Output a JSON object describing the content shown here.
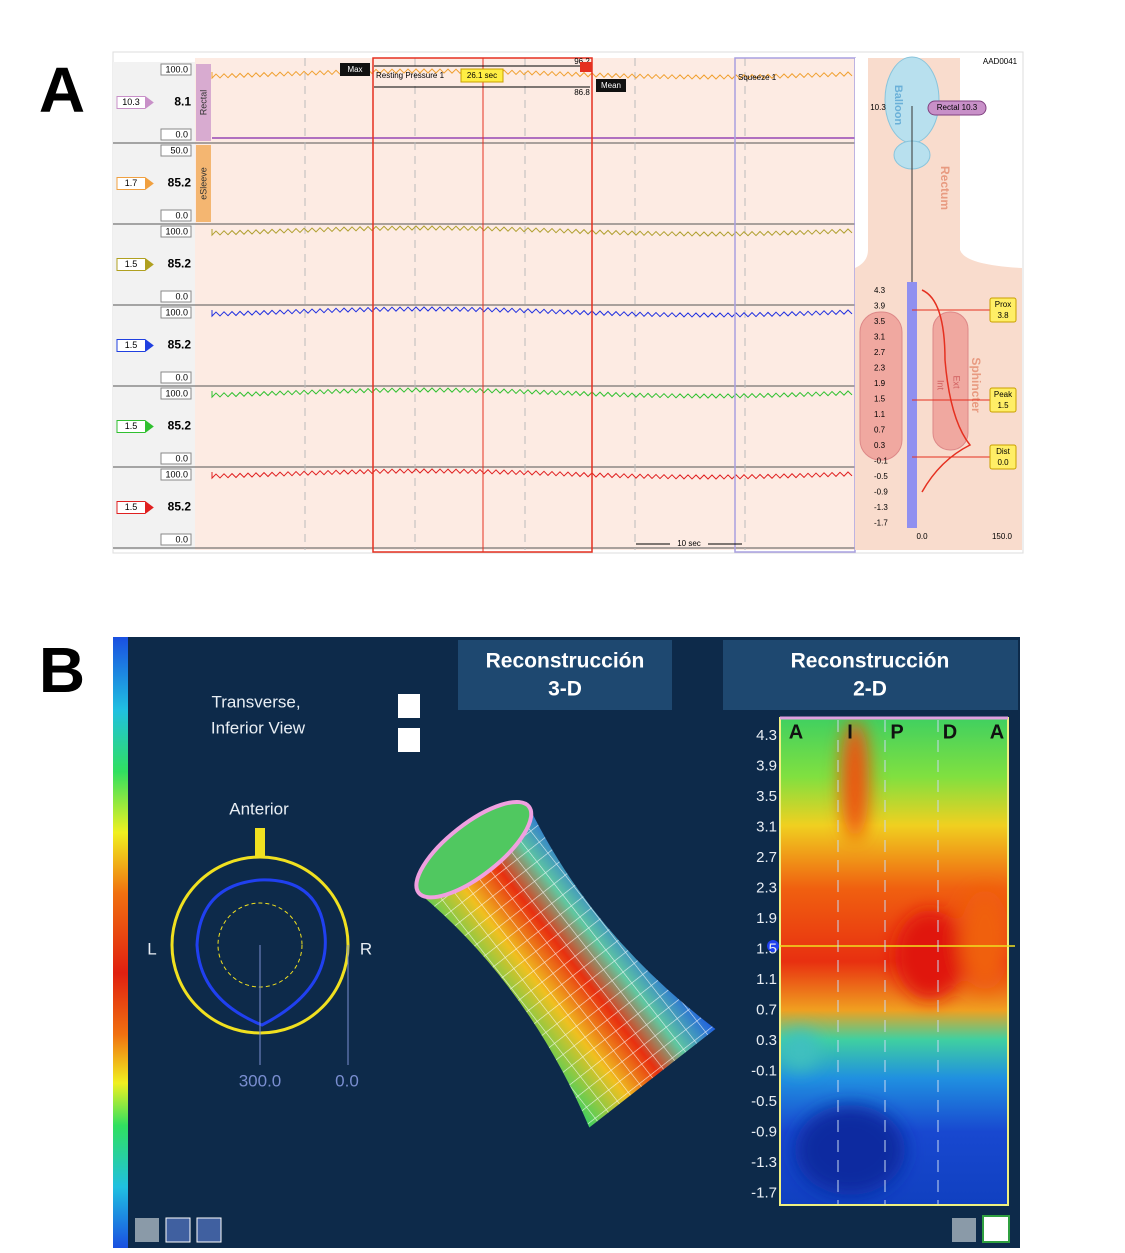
{
  "panel_a": {
    "label": "A",
    "channels": [
      {
        "max": "100.0",
        "min": "0.0",
        "tag": "10.3",
        "reading": "8.1",
        "name": "Rectal"
      },
      {
        "max": "50.0",
        "min": "0.0",
        "tag": "1.7",
        "reading": "85.2",
        "name": "eSleeve"
      },
      {
        "max": "100.0",
        "min": "0.0",
        "tag": "1.5",
        "reading": "85.2"
      },
      {
        "max": "100.0",
        "min": "0.0",
        "tag": "1.5",
        "reading": "85.2"
      },
      {
        "max": "100.0",
        "min": "0.0",
        "tag": "1.5",
        "reading": "85.2"
      },
      {
        "max": "100.0",
        "min": "0.0",
        "tag": "1.5",
        "reading": "85.2"
      }
    ],
    "annotations": {
      "max": "Max",
      "resting": "Resting Pressure 1",
      "duration": "26.1 sec",
      "peak_value": "96.2",
      "mean_value": "86.8",
      "mean": "Mean",
      "squeeze": "Squeeze 1",
      "scale": "10 sec"
    },
    "anatomy": {
      "id": "AAD0041",
      "balloon": "Balloon",
      "rectum": "Rectum",
      "balloon_value": "10.3",
      "rectal_tag": "Rectal 10.3",
      "sphincter": "Sphincter",
      "int": "Int",
      "ext": "Ext",
      "prox": "Prox",
      "prox_value": "3.8",
      "peak": "Peak",
      "peak_value": "1.5",
      "dist": "Dist",
      "dist_value": "0.0",
      "scale": [
        "4.3",
        "3.9",
        "3.5",
        "3.1",
        "2.7",
        "2.3",
        "1.9",
        "1.5",
        "1.1",
        "0.7",
        "0.3",
        "-0.1",
        "-0.5",
        "-0.9",
        "-1.3",
        "-1.7"
      ],
      "x_min": "0.0",
      "x_max": "150.0"
    }
  },
  "panel_b": {
    "label": "B",
    "view": [
      "Transverse,",
      "Inferior View"
    ],
    "anterior": "Anterior",
    "left": "L",
    "right": "R",
    "radial_value": "300.0",
    "center_value": "0.0",
    "title_3d": [
      "Reconstrucción",
      "3-D"
    ],
    "title_2d": [
      "Reconstrucción",
      "2-D"
    ],
    "scale": [
      "4.3",
      "3.9",
      "3.5",
      "3.1",
      "2.7",
      "2.3",
      "1.9",
      "1.5",
      "1.1",
      "0.7",
      "0.3",
      "-0.1",
      "-0.5",
      "-0.9",
      "-1.3",
      "-1.7"
    ],
    "columns": [
      "A",
      "I",
      "P",
      "D",
      "A"
    ]
  }
}
